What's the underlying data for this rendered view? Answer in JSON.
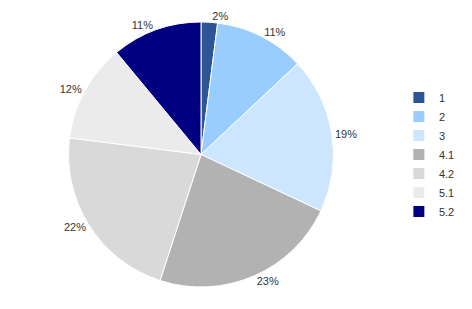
{
  "chart_data": {
    "type": "pie",
    "categories": [
      "1",
      "2",
      "3",
      "4.1",
      "4.2",
      "5.1",
      "5.2"
    ],
    "values": [
      2,
      11,
      19,
      23,
      22,
      12,
      11
    ],
    "value_labels": [
      "2%",
      "11%",
      "19%",
      "23%",
      "22%",
      "12%",
      "11%"
    ],
    "colors": [
      "#2c5595",
      "#99ccff",
      "#cce6ff",
      "#b2b2b2",
      "#d9d9d9",
      "#ebebeb",
      "#000080"
    ],
    "data_labels": true,
    "legend": "right"
  }
}
